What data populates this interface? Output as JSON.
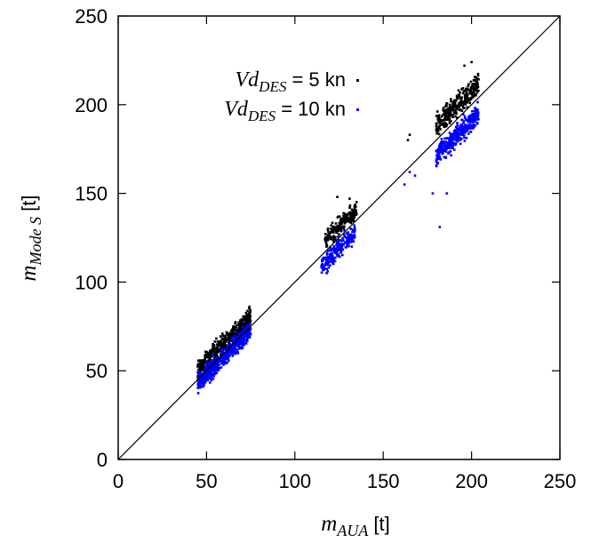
{
  "chart_data": {
    "type": "scatter",
    "xlabel": {
      "main": "m",
      "sub": "AUA",
      "unit": "[t]"
    },
    "ylabel": {
      "main": "m",
      "sub": "Mode S",
      "unit": "[t]"
    },
    "xlim": [
      0,
      250
    ],
    "ylim": [
      0,
      250
    ],
    "xticks": [
      "0",
      "50",
      "100",
      "150",
      "200",
      "250"
    ],
    "yticks": [
      "0",
      "50",
      "100",
      "150",
      "200",
      "250"
    ],
    "grid": false,
    "reference_line": {
      "from": [
        0,
        0
      ],
      "to": [
        250,
        250
      ],
      "color": "#000000"
    },
    "legend_position": "top-left",
    "series": [
      {
        "name": {
          "main": "Vd",
          "sub": "DES",
          "rest": " = 5 kn"
        },
        "color": "#000000",
        "clusters": [
          {
            "x_range": [
              45,
              75
            ],
            "y_center_offset": 6,
            "y_spread": 5,
            "count": 420
          },
          {
            "x_range": [
              117,
              135
            ],
            "y_center_offset": 6,
            "y_spread": 5,
            "count": 200
          },
          {
            "x_range": [
              180,
              204
            ],
            "y_center_offset": 8,
            "y_spread": 6,
            "count": 300
          }
        ],
        "extremes": [
          [
            124,
            148
          ],
          [
            131,
            147
          ],
          [
            200,
            224
          ],
          [
            196,
            222
          ],
          [
            164,
            180
          ],
          [
            165,
            183
          ],
          [
            181,
            192
          ]
        ]
      },
      {
        "name": {
          "main": "Vd",
          "sub": "DES",
          "rest": " = 10 kn"
        },
        "color": "#0000ff",
        "clusters": [
          {
            "x_range": [
              45,
              75
            ],
            "y_center_offset": -2,
            "y_spread": 5,
            "count": 600
          },
          {
            "x_range": [
              115,
              134
            ],
            "y_center_offset": -6,
            "y_spread": 5,
            "count": 230
          },
          {
            "x_range": [
              180,
              204
            ],
            "y_center_offset": -9,
            "y_spread": 6,
            "count": 340
          }
        ],
        "extremes": [
          [
            46,
            43
          ],
          [
            118,
            105
          ],
          [
            182,
            131
          ],
          [
            178,
            150
          ],
          [
            186,
            150
          ],
          [
            162,
            155
          ],
          [
            165,
            162
          ],
          [
            168,
            160
          ]
        ]
      }
    ]
  }
}
